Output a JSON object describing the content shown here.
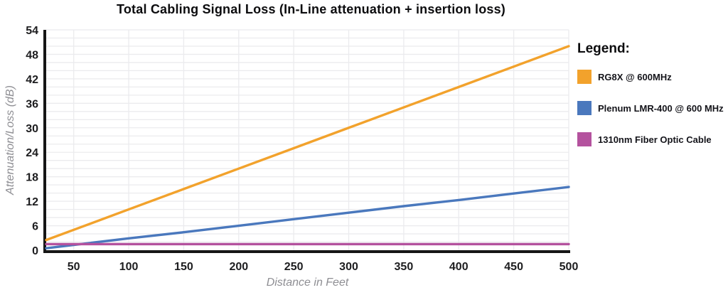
{
  "title": "Total Cabling Signal Loss (In-Line attenuation + insertion loss)",
  "legend": {
    "heading": "Legend:",
    "items": [
      {
        "label": "RG8X @ 600MHz",
        "color": "#F2A22C"
      },
      {
        "label": "Plenum LMR-400 @ 600 MHz",
        "color": "#4A78BD"
      },
      {
        "label": "1310nm Fiber Optic Cable",
        "color": "#B4529E"
      }
    ]
  },
  "chart_data": {
    "type": "line",
    "title": "Total Cabling Signal Loss (In-Line attenuation + insertion loss)",
    "xlabel": "Distance in Feet",
    "ylabel": "Attenuation/Loss (dB)",
    "x": [
      25,
      50,
      100,
      150,
      200,
      250,
      300,
      350,
      400,
      450,
      500
    ],
    "series": [
      {
        "name": "RG8X @ 600MHz",
        "color": "#F2A22C",
        "values": [
          2.5,
          5,
          10,
          15,
          20,
          25,
          30,
          35,
          40,
          45,
          50
        ]
      },
      {
        "name": "Plenum LMR-400 @ 600 MHz",
        "color": "#4A78BD",
        "values": [
          0.5,
          1.3,
          2.9,
          4.4,
          6.0,
          7.6,
          9.2,
          10.8,
          12.3,
          13.9,
          15.5
        ]
      },
      {
        "name": "1310nm Fiber Optic Cable",
        "color": "#B4529E",
        "values": [
          1.5,
          1.5,
          1.5,
          1.5,
          1.5,
          1.5,
          1.5,
          1.5,
          1.5,
          1.5,
          1.5
        ]
      }
    ],
    "xlim": [
      25,
      500
    ],
    "ylim": [
      0,
      54
    ],
    "x_ticks": [
      50,
      100,
      150,
      200,
      250,
      300,
      350,
      400,
      450,
      500
    ],
    "y_ticks": [
      0,
      6,
      12,
      18,
      24,
      30,
      36,
      42,
      48,
      54
    ],
    "grid": {
      "x_every": 50,
      "y_minor_every": 2,
      "visible": true
    },
    "legend_position": "right"
  },
  "colors": {
    "axis": "#161616",
    "grid": "#ebebee",
    "tick_label": "#1d1d1f",
    "axis_label": "#8e8e93",
    "title": "#0c0c0e",
    "background": "#ffffff"
  }
}
